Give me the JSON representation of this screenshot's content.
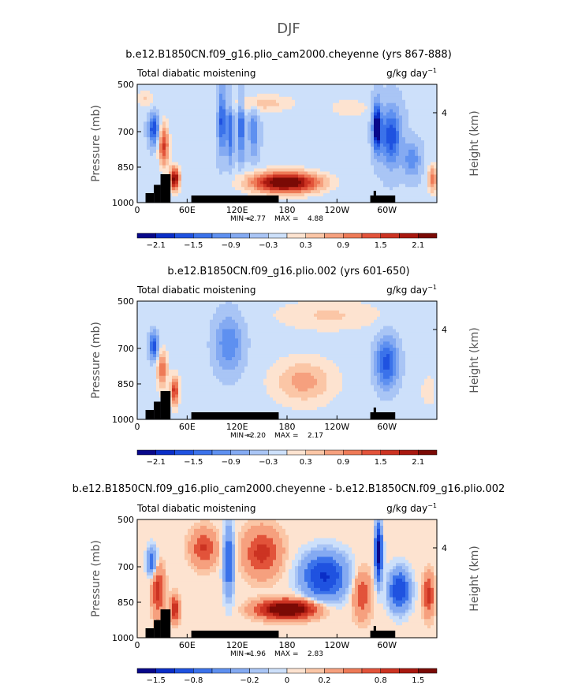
{
  "figure": {
    "suptitle": "DJF"
  },
  "chart_data": [
    {
      "type": "heatmap",
      "title": "b.e12.B1850CN.f09_g16.plio_cam2000.cheyenne (yrs 867-888)",
      "variable": "Total diabatic moistening",
      "units": "g/kg day",
      "units_exp": "−1",
      "ylabel": "Pressure (mb)",
      "ylabel_right": "Height (km)",
      "xticks": [
        "0",
        "60E",
        "120E",
        "180",
        "120W",
        "60W"
      ],
      "yticks": [
        "500",
        "700",
        "850",
        "1000"
      ],
      "right_ticks": [
        "4"
      ],
      "ylim": [
        1000,
        500
      ],
      "stats_min_label": "MIN =",
      "stats_min": "−2.77",
      "stats_max_label": "MAX =",
      "stats_max": "4.88",
      "colorbar_labels": [
        "−2.1",
        "−1.5",
        "−0.9",
        "−0.3",
        "0.3",
        "0.9",
        "1.5",
        "2.1"
      ],
      "levels": [
        -2.4,
        -2.1,
        -1.8,
        -1.5,
        -1.2,
        -0.9,
        -0.6,
        -0.3,
        0.0,
        0.3,
        0.6,
        0.9,
        1.2,
        1.5,
        1.8,
        2.1,
        2.4
      ],
      "field_scale": 1.0
    },
    {
      "type": "heatmap",
      "title": "b.e12.B1850CN.f09_g16.plio.002 (yrs 601-650)",
      "variable": "Total diabatic moistening",
      "units": "g/kg day",
      "units_exp": "−1",
      "ylabel": "Pressure (mb)",
      "ylabel_right": "Height (km)",
      "xticks": [
        "0",
        "60E",
        "120E",
        "180",
        "120W",
        "60W"
      ],
      "yticks": [
        "500",
        "700",
        "850",
        "1000"
      ],
      "right_ticks": [
        "4"
      ],
      "ylim": [
        1000,
        500
      ],
      "stats_min_label": "MIN =",
      "stats_min": "−2.20",
      "stats_max_label": "MAX =",
      "stats_max": "2.17",
      "colorbar_labels": [
        "−2.1",
        "−1.5",
        "−0.9",
        "−0.3",
        "0.3",
        "0.9",
        "1.5",
        "2.1"
      ],
      "levels": [
        -2.4,
        -2.1,
        -1.8,
        -1.5,
        -1.2,
        -0.9,
        -0.6,
        -0.3,
        0.0,
        0.3,
        0.6,
        0.9,
        1.2,
        1.5,
        1.8,
        2.1,
        2.4
      ],
      "field_scale": 0.7
    },
    {
      "type": "heatmap",
      "title": "b.e12.B1850CN.f09_g16.plio_cam2000.cheyenne - b.e12.B1850CN.f09_g16.plio.002",
      "variable": "Total diabatic moistening",
      "units": "g/kg day",
      "units_exp": "−1",
      "ylabel": "Pressure (mb)",
      "ylabel_right": "Height (km)",
      "xticks": [
        "0",
        "60E",
        "120E",
        "180",
        "120W",
        "60W"
      ],
      "yticks": [
        "500",
        "700",
        "850",
        "1000"
      ],
      "right_ticks": [
        "4"
      ],
      "ylim": [
        1000,
        500
      ],
      "stats_min_label": "MIN =",
      "stats_min": "−1.96",
      "stats_max_label": "MAX =",
      "stats_max": "2.83",
      "colorbar_labels": [
        "−1.5",
        "−0.8",
        "−0.2",
        "0",
        "0.2",
        "0.8",
        "1.5"
      ],
      "levels": [
        -2.0,
        -1.5,
        -1.2,
        -0.8,
        -0.5,
        -0.2,
        -0.1,
        0.0,
        0.1,
        0.2,
        0.5,
        0.8,
        1.2,
        1.5,
        2.0
      ],
      "field_scale": 0.8
    }
  ],
  "colors": {
    "colormap": [
      "#08088a",
      "#0a2ec7",
      "#1f52e0",
      "#3b72ea",
      "#5e90f0",
      "#84aaf2",
      "#a9c5f5",
      "#cde0fa",
      "#fde3d0",
      "#fbc6a6",
      "#f6a07e",
      "#ee7a57",
      "#e2533a",
      "#cc3322",
      "#a8180f",
      "#7a0a05"
    ],
    "topography": "#000000"
  }
}
